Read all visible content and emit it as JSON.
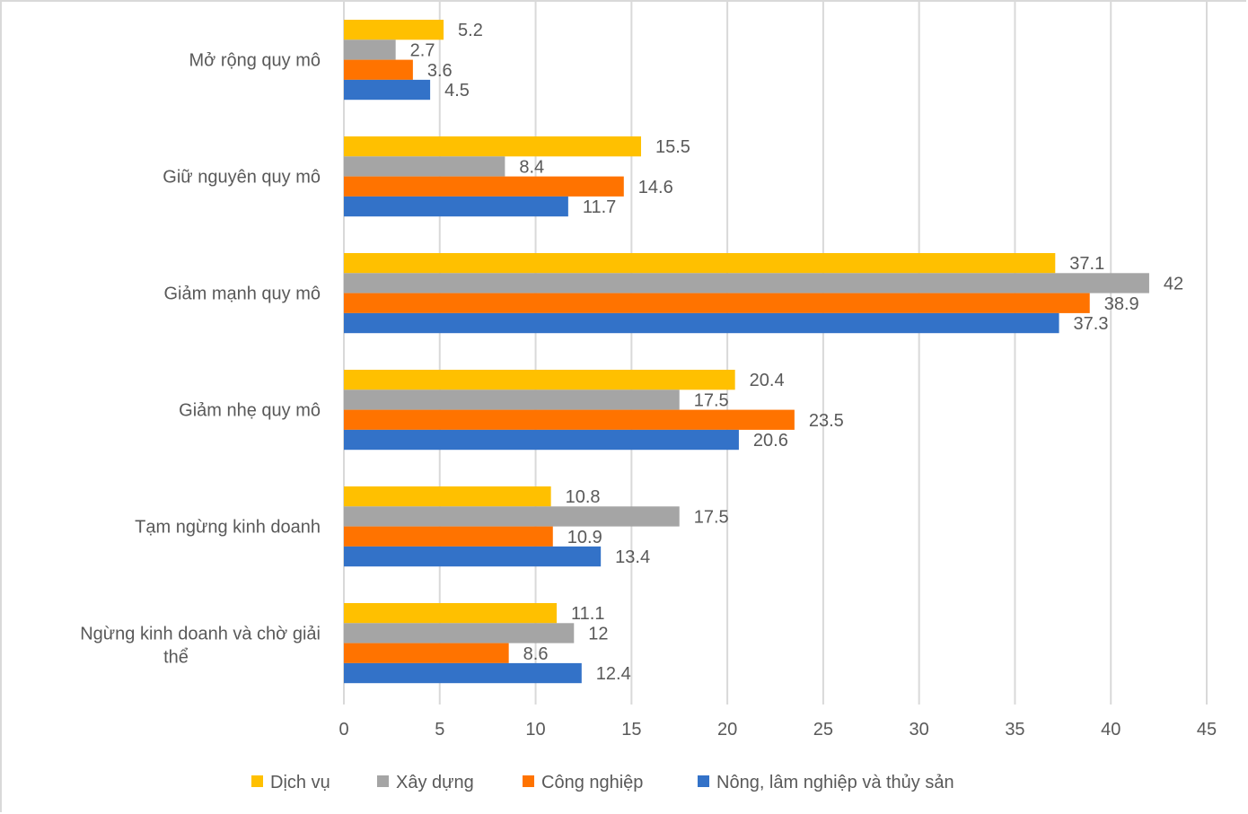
{
  "chart_data": {
    "type": "bar",
    "orientation": "horizontal",
    "categories": [
      "Mở rộng quy mô",
      "Giữ nguyên quy mô",
      "Giảm mạnh quy mô",
      "Giảm nhẹ quy mô",
      "Tạm ngừng kinh doanh",
      "Ngừng kinh doanh và chờ giải thể"
    ],
    "series": [
      {
        "name": "Dịch vụ",
        "color": "#FFC000",
        "values": [
          5.2,
          15.5,
          37.1,
          20.4,
          10.8,
          11.1
        ]
      },
      {
        "name": "Xây dựng",
        "color": "#A5A5A5",
        "values": [
          2.7,
          8.4,
          42,
          17.5,
          17.5,
          12
        ]
      },
      {
        "name": "Công nghiệp",
        "color": "#FF7300",
        "values": [
          3.6,
          14.6,
          38.9,
          23.5,
          10.9,
          8.6
        ]
      },
      {
        "name": "Nông, lâm nghiệp và thủy sản",
        "color": "#3372C8",
        "values": [
          4.5,
          11.7,
          37.3,
          20.6,
          13.4,
          12.4
        ]
      }
    ],
    "xlim": [
      0,
      45
    ],
    "xticks": [
      "0",
      "5",
      "10",
      "15",
      "20",
      "25",
      "30",
      "35",
      "40",
      "45"
    ],
    "grid": true,
    "legend": "bottom",
    "data_labels": true
  }
}
